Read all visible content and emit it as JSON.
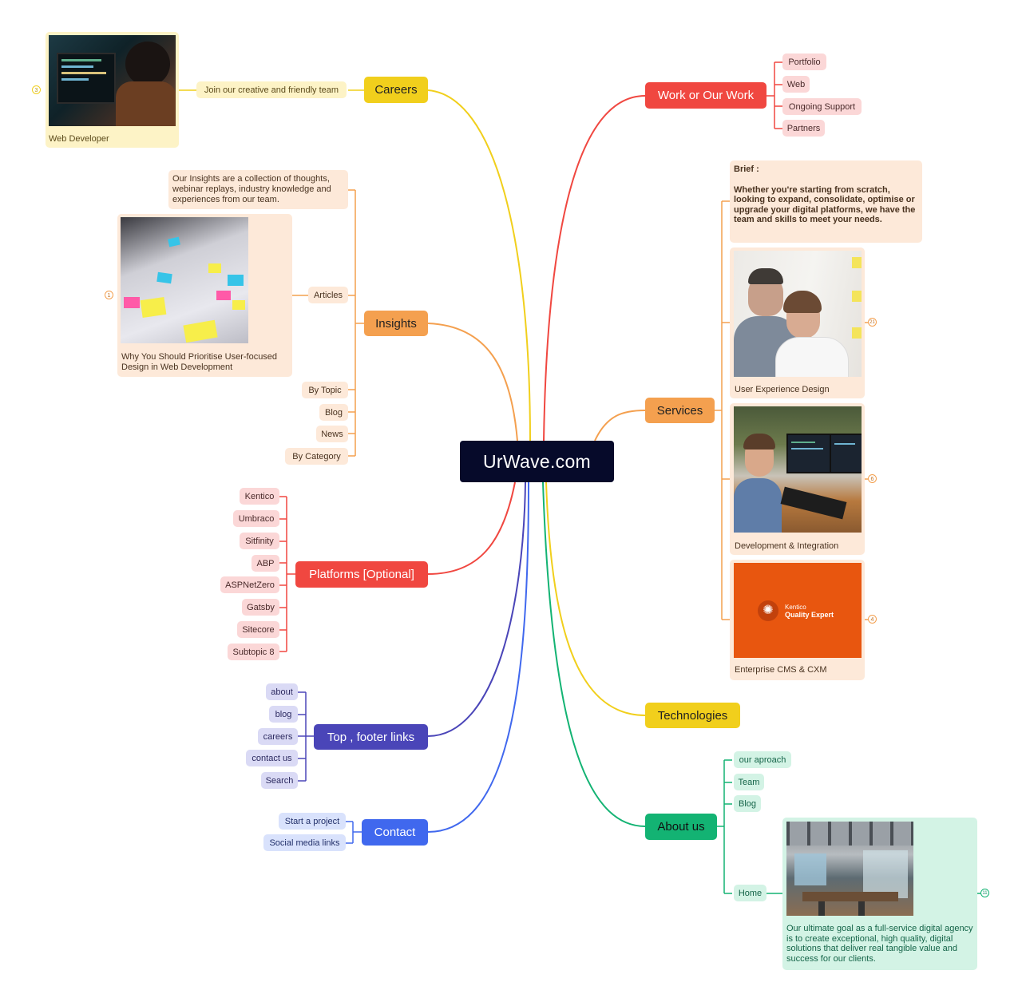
{
  "root": {
    "title": "UrWave.com"
  },
  "colors": {
    "yellow": "#f1cf1c",
    "orange": "#f4a04f",
    "red": "#f04740",
    "purple": "#4a45b8",
    "blue": "#4068ee",
    "green": "#13b373",
    "navy": "#060a2a"
  },
  "careers": {
    "label": "Careers",
    "join": "Join our creative and friendly team",
    "card_caption": "Web Developer",
    "badge": "3",
    "image_icon": "developer-photo"
  },
  "insights": {
    "label": "Insights",
    "description": "Our Insights are a collection of thoughts, webinar replays, industry knowledge and experiences from our team.",
    "articles": "Articles",
    "article_card": "Why You Should Prioritise User-focused Design in Web Development",
    "badge": "1",
    "items": [
      "By Topic",
      "Blog",
      "News",
      "By Category"
    ]
  },
  "platforms": {
    "label": "Platforms [Optional]",
    "items": [
      "Kentico",
      "Umbraco",
      "Sitfinity",
      "ABP",
      "ASPNetZero",
      "Gatsby",
      "Sitecore",
      "Subtopic 8"
    ]
  },
  "footer": {
    "label": "Top , footer links",
    "items": [
      "about",
      "blog",
      "careers",
      "contact us",
      "Search"
    ]
  },
  "contact": {
    "label": "Contact",
    "items": [
      "Start a project",
      "Social media links"
    ]
  },
  "work": {
    "label": "Work or Our Work",
    "items": [
      "Portfolio",
      "Web",
      "Ongoing Support",
      "Partners"
    ]
  },
  "services": {
    "label": "Services",
    "brief_title": "Brief :",
    "brief_text": "Whether you're starting from scratch, looking to expand, consolidate, optimise or upgrade your digital platforms, we have the team and skills to meet your needs.",
    "cards": [
      {
        "caption": "User Experience Design",
        "badge": "21"
      },
      {
        "caption": "Development & Integration",
        "badge": "6"
      },
      {
        "caption": "Enterprise CMS & CXM",
        "badge": "4"
      }
    ],
    "kentico_logo": "Kentico",
    "kentico_sub": "Quality Expert"
  },
  "technologies": {
    "label": "Technologies"
  },
  "about": {
    "label": "About us",
    "items": [
      "our aproach",
      "Team",
      "Blog",
      "Home"
    ],
    "home_text": "Our ultimate goal as a full-service digital agency is to create exceptional, high quality, digital solutions that deliver real tangible value and success for our clients.",
    "badge": "11"
  }
}
